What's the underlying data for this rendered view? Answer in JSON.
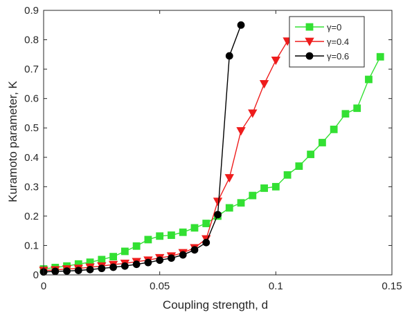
{
  "chart_data": {
    "type": "line",
    "title": "",
    "xlabel": "Coupling strength, d",
    "ylabel": "Kuramoto parameter, K",
    "xlim": [
      0,
      0.15
    ],
    "ylim": [
      0,
      0.9
    ],
    "xticks": [
      0,
      0.05,
      0.1,
      0.15
    ],
    "xtick_labels": [
      "0",
      "0.05",
      "0.1",
      "0.15"
    ],
    "yticks": [
      0,
      0.1,
      0.2,
      0.3,
      0.4,
      0.5,
      0.6,
      0.7,
      0.8,
      0.9
    ],
    "ytick_labels": [
      "0",
      "0.1",
      "0.2",
      "0.3",
      "0.4",
      "0.5",
      "0.6",
      "0.7",
      "0.8",
      "0.9"
    ],
    "grid": false,
    "legend_position": "top-right",
    "series": [
      {
        "name": "γ=0",
        "color": "#33e033",
        "marker": "square",
        "x": [
          0,
          0.005,
          0.01,
          0.015,
          0.02,
          0.025,
          0.03,
          0.035,
          0.04,
          0.045,
          0.05,
          0.055,
          0.06,
          0.065,
          0.07,
          0.075,
          0.08,
          0.085,
          0.09,
          0.095,
          0.1,
          0.105,
          0.11,
          0.115,
          0.12,
          0.125,
          0.13,
          0.135,
          0.14,
          0.145
        ],
        "y": [
          0.02,
          0.025,
          0.03,
          0.037,
          0.043,
          0.052,
          0.062,
          0.08,
          0.098,
          0.12,
          0.132,
          0.135,
          0.145,
          0.16,
          0.175,
          0.2,
          0.228,
          0.245,
          0.27,
          0.295,
          0.3,
          0.34,
          0.37,
          0.41,
          0.45,
          0.495,
          0.548,
          0.567,
          0.665,
          0.742
        ]
      },
      {
        "name": "γ=0.4",
        "color": "#ee1c1c",
        "marker": "triangle-down",
        "x": [
          0,
          0.005,
          0.01,
          0.015,
          0.02,
          0.025,
          0.03,
          0.035,
          0.04,
          0.045,
          0.05,
          0.055,
          0.06,
          0.065,
          0.07,
          0.075,
          0.08,
          0.085,
          0.09,
          0.095,
          0.1,
          0.105
        ],
        "y": [
          0.015,
          0.017,
          0.02,
          0.022,
          0.026,
          0.03,
          0.035,
          0.039,
          0.045,
          0.05,
          0.058,
          0.064,
          0.075,
          0.092,
          0.122,
          0.25,
          0.33,
          0.49,
          0.55,
          0.65,
          0.73,
          0.795
        ]
      },
      {
        "name": "γ=0.6",
        "color": "#000000",
        "marker": "circle",
        "x": [
          0,
          0.005,
          0.01,
          0.015,
          0.02,
          0.025,
          0.03,
          0.035,
          0.04,
          0.045,
          0.05,
          0.055,
          0.06,
          0.065,
          0.07,
          0.075,
          0.08,
          0.085
        ],
        "y": [
          0.01,
          0.012,
          0.013,
          0.015,
          0.018,
          0.022,
          0.026,
          0.03,
          0.036,
          0.042,
          0.05,
          0.057,
          0.068,
          0.085,
          0.11,
          0.205,
          0.745,
          0.85
        ]
      }
    ]
  }
}
